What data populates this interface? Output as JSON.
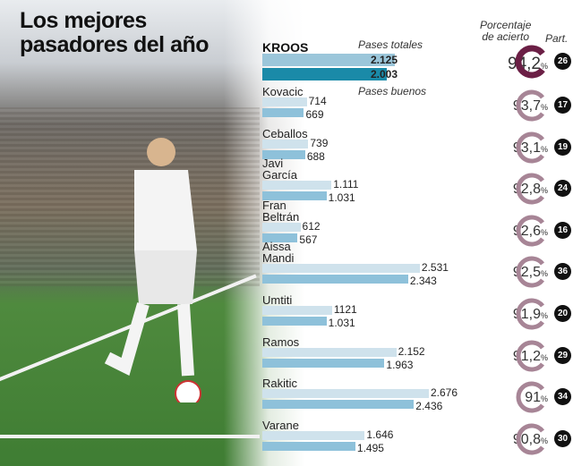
{
  "title_line1": "Los mejores",
  "title_line2": "pasadores del año",
  "legend": {
    "total": "Pases totales",
    "good": "Pases buenos"
  },
  "headers": {
    "pct_line1": "Porcentaje",
    "pct_line2": "de acierto",
    "matches": "Part."
  },
  "colors": {
    "total_bar": "#cfe2ec",
    "good_bar": "#8ec1da",
    "highlight_good_bar": "#1a8aa8",
    "highlight_ring": "#6b1f45",
    "ring": "#a78596"
  },
  "chart_data": {
    "type": "bar",
    "orientation": "horizontal",
    "categories": [
      "KROOS",
      "Kovacic",
      "Ceballos",
      "Javi\nGarcía",
      "Fran\nBeltrán",
      "Aissa\nMandi",
      "Umtiti",
      "Ramos",
      "Rakitic",
      "Varane"
    ],
    "series": [
      {
        "name": "Pases totales",
        "values": [
          2125,
          714,
          739,
          1111,
          612,
          2531,
          1121,
          2152,
          2676,
          1646
        ],
        "labels": [
          "2.125",
          "714",
          "739",
          "1.111",
          "612",
          "2.531",
          "1121",
          "2.152",
          "2.676",
          "1.646"
        ]
      },
      {
        "name": "Pases buenos",
        "values": [
          2003,
          669,
          688,
          1031,
          567,
          2343,
          1031,
          1963,
          2436,
          1495
        ],
        "labels": [
          "2.003",
          "669",
          "688",
          "1.031",
          "567",
          "2.343",
          "1.031",
          "1.963",
          "2.436",
          "1.495"
        ]
      }
    ],
    "accuracy": [
      "94,2",
      "93,7",
      "93,1",
      "92,8",
      "92,6",
      "92,5",
      "91,9",
      "91,2",
      "91",
      "90,8"
    ],
    "accuracy_unit": "%",
    "matches": [
      "26",
      "17",
      "19",
      "24",
      "16",
      "36",
      "20",
      "29",
      "34",
      "30"
    ]
  }
}
